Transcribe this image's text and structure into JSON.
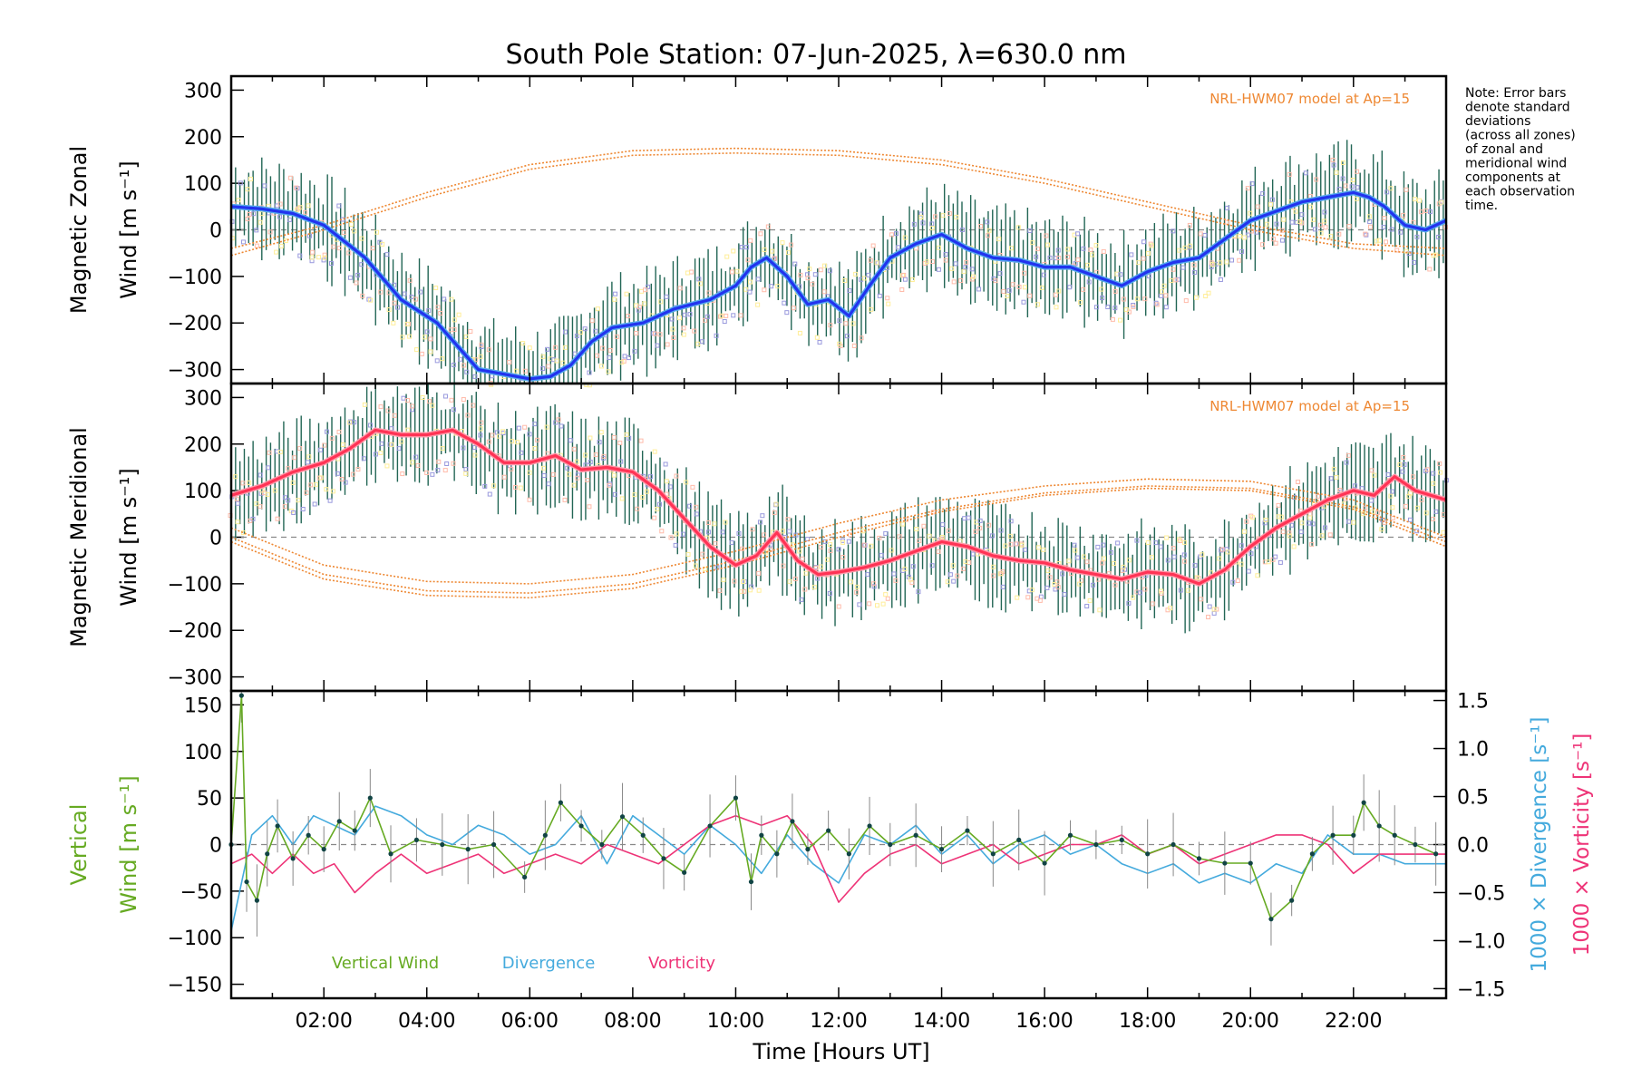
{
  "title": "South Pole Station: 07-Jun-2025, λ=630.0 nm",
  "note": {
    "lines": [
      "Note: Error bars",
      "denote standard",
      "deviations",
      "(across all zones)",
      "of zonal and",
      "meridional wind",
      "components at",
      "each observation",
      "time."
    ]
  },
  "colors": {
    "zonal": "#2233ee",
    "zonal_light": "#55aaee",
    "meridional": "#ff3355",
    "model": "#ee8833",
    "vertical": "#66aa22",
    "divergence": "#44aadd",
    "vorticity": "#ee3377",
    "errorbar": "#226655",
    "frame": "#000000"
  },
  "xaxis": {
    "label": "Time [Hours UT]",
    "range_hours": [
      0.2,
      23.8
    ],
    "ticks": [
      {
        "h": 2,
        "label": "02:00"
      },
      {
        "h": 4,
        "label": "04:00"
      },
      {
        "h": 6,
        "label": "06:00"
      },
      {
        "h": 8,
        "label": "08:00"
      },
      {
        "h": 10,
        "label": "10:00"
      },
      {
        "h": 12,
        "label": "12:00"
      },
      {
        "h": 14,
        "label": "14:00"
      },
      {
        "h": 16,
        "label": "16:00"
      },
      {
        "h": 18,
        "label": "18:00"
      },
      {
        "h": 20,
        "label": "20:00"
      },
      {
        "h": 22,
        "label": "22:00"
      }
    ]
  },
  "chart_data": [
    {
      "type": "line",
      "panel": "zonal",
      "ylabel_line1": "Magnetic Zonal",
      "ylabel_line2": "Wind [m s⁻¹]",
      "ylim": [
        -330,
        330
      ],
      "yticks": [
        -300,
        -200,
        -100,
        0,
        100,
        200,
        300
      ],
      "model_label": "NRL-HWM07 model at Ap=15",
      "series": [
        {
          "name": "zonal wind",
          "x": [
            0.2,
            0.8,
            1.4,
            2.0,
            2.8,
            3.5,
            4.2,
            5.0,
            5.5,
            6.0,
            6.4,
            6.8,
            7.2,
            7.6,
            8.2,
            8.8,
            9.5,
            10.0,
            10.3,
            10.6,
            11.0,
            11.4,
            11.8,
            12.2,
            12.6,
            13.0,
            13.5,
            14.0,
            14.5,
            15.0,
            15.5,
            16.0,
            16.5,
            17.0,
            17.5,
            18.0,
            18.5,
            19.0,
            19.5,
            20.0,
            20.5,
            21.0,
            21.5,
            22.0,
            22.3,
            22.6,
            23.0,
            23.4,
            23.8
          ],
          "y": [
            50,
            45,
            35,
            10,
            -60,
            -150,
            -200,
            -300,
            -310,
            -320,
            -315,
            -290,
            -240,
            -210,
            -200,
            -170,
            -150,
            -120,
            -80,
            -60,
            -100,
            -160,
            -150,
            -185,
            -120,
            -60,
            -30,
            -10,
            -40,
            -60,
            -65,
            -80,
            -80,
            -100,
            -120,
            -90,
            -70,
            -60,
            -20,
            20,
            40,
            60,
            70,
            80,
            70,
            50,
            10,
            0,
            20
          ]
        },
        {
          "name": "model upper",
          "x": [
            0.2,
            2,
            4,
            6,
            8,
            10,
            12,
            14,
            16,
            18,
            20,
            22,
            23.8
          ],
          "y": [
            -40,
            10,
            80,
            140,
            170,
            175,
            170,
            150,
            110,
            60,
            10,
            -30,
            -40
          ]
        },
        {
          "name": "model lower",
          "x": [
            0.2,
            2,
            4,
            6,
            8,
            10,
            12,
            14,
            16,
            18,
            20,
            22,
            23.8
          ],
          "y": [
            -55,
            0,
            70,
            130,
            160,
            165,
            160,
            140,
            100,
            50,
            0,
            -40,
            -55
          ]
        }
      ]
    },
    {
      "type": "line",
      "panel": "meridional",
      "ylabel_line1": "Magnetic Meridional",
      "ylabel_line2": "Wind [m s⁻¹]",
      "ylim": [
        -330,
        330
      ],
      "yticks": [
        -300,
        -200,
        -100,
        0,
        100,
        200,
        300
      ],
      "model_label": "NRL-HWM07 model at Ap=15",
      "series": [
        {
          "name": "meridional wind",
          "x": [
            0.2,
            0.8,
            1.4,
            2.0,
            2.5,
            3.0,
            3.5,
            4.0,
            4.5,
            5.0,
            5.5,
            6.0,
            6.5,
            7.0,
            7.5,
            8.0,
            8.5,
            9.0,
            9.5,
            10.0,
            10.4,
            10.8,
            11.2,
            11.6,
            12.0,
            12.5,
            13.0,
            13.5,
            14.0,
            14.5,
            15.0,
            15.5,
            16.0,
            16.5,
            17.0,
            17.5,
            18.0,
            18.5,
            19.0,
            19.5,
            20.0,
            20.5,
            21.0,
            21.5,
            22.0,
            22.4,
            22.8,
            23.2,
            23.8
          ],
          "y": [
            90,
            110,
            140,
            160,
            190,
            230,
            220,
            220,
            230,
            200,
            160,
            160,
            175,
            145,
            150,
            140,
            100,
            40,
            -20,
            -60,
            -40,
            10,
            -50,
            -80,
            -75,
            -65,
            -50,
            -30,
            -10,
            -20,
            -40,
            -50,
            -55,
            -70,
            -80,
            -90,
            -75,
            -80,
            -100,
            -70,
            -20,
            20,
            50,
            80,
            100,
            90,
            130,
            100,
            80
          ]
        },
        {
          "name": "model 1",
          "x": [
            0.2,
            2,
            4,
            6,
            8,
            10,
            12,
            14,
            16,
            18,
            20,
            22,
            23.8
          ],
          "y": [
            20,
            -60,
            -95,
            -100,
            -80,
            -30,
            30,
            80,
            110,
            125,
            120,
            80,
            0
          ]
        },
        {
          "name": "model 2",
          "x": [
            0.2,
            2,
            4,
            6,
            8,
            10,
            12,
            14,
            16,
            18,
            20,
            22,
            23.8
          ],
          "y": [
            0,
            -80,
            -115,
            -120,
            -100,
            -50,
            10,
            60,
            95,
            110,
            105,
            65,
            -10
          ]
        },
        {
          "name": "model 3",
          "x": [
            0.2,
            2,
            4,
            6,
            8,
            10,
            12,
            14,
            16,
            18,
            20,
            22,
            23.8
          ],
          "y": [
            -10,
            -90,
            -125,
            -130,
            -110,
            -60,
            0,
            55,
            90,
            105,
            100,
            60,
            -20
          ]
        }
      ]
    },
    {
      "type": "line",
      "panel": "vertical",
      "ylabel_left_line1": "Vertical",
      "ylabel_left_line2": "Wind [m s⁻¹]",
      "ylabel_right_div": "1000 × Divergence [s⁻¹]",
      "ylabel_right_vor": "1000 × Vorticity [s⁻¹]",
      "ylim_left": [
        -165,
        165
      ],
      "yticks_left": [
        -150,
        -100,
        -50,
        0,
        50,
        100,
        150
      ],
      "ylim_right": [
        -1.6,
        1.6
      ],
      "yticks_right": [
        {
          "v": -1.5,
          "label": "−1.5"
        },
        {
          "v": -1.0,
          "label": "−1.0"
        },
        {
          "v": -0.5,
          "label": "−0.5"
        },
        {
          "v": 0.0,
          "label": "0.0"
        },
        {
          "v": 0.5,
          "label": "0.5"
        },
        {
          "v": 1.0,
          "label": "1.0"
        },
        {
          "v": 1.5,
          "label": "1.5"
        }
      ],
      "legend": [
        "Vertical Wind",
        "Divergence",
        "Vorticity"
      ],
      "series": [
        {
          "name": "Vertical Wind",
          "x": [
            0.2,
            0.4,
            0.5,
            0.7,
            0.9,
            1.1,
            1.4,
            1.7,
            2.0,
            2.3,
            2.6,
            2.9,
            3.3,
            3.8,
            4.3,
            4.8,
            5.3,
            5.9,
            6.3,
            6.6,
            7.0,
            7.4,
            7.8,
            8.2,
            8.6,
            9.0,
            9.5,
            10.0,
            10.3,
            10.5,
            10.8,
            11.1,
            11.4,
            11.8,
            12.2,
            12.6,
            13.0,
            13.5,
            14.0,
            14.5,
            15.0,
            15.5,
            16.0,
            16.5,
            17.0,
            17.5,
            18.0,
            18.5,
            19.0,
            19.5,
            20.0,
            20.4,
            20.8,
            21.2,
            21.6,
            22.0,
            22.2,
            22.5,
            22.8,
            23.2,
            23.6
          ],
          "y": [
            0,
            160,
            -40,
            -60,
            -10,
            20,
            -15,
            10,
            -5,
            25,
            15,
            50,
            -10,
            5,
            0,
            -5,
            0,
            -35,
            10,
            45,
            20,
            0,
            30,
            10,
            -15,
            -30,
            20,
            50,
            -40,
            10,
            -10,
            25,
            -5,
            15,
            -10,
            20,
            0,
            10,
            -5,
            15,
            -10,
            5,
            -20,
            10,
            0,
            5,
            -10,
            0,
            -15,
            -20,
            -20,
            -80,
            -60,
            -10,
            10,
            10,
            45,
            20,
            10,
            0,
            -10
          ]
        },
        {
          "name": "Divergence",
          "x": [
            0.2,
            0.6,
            1.0,
            1.4,
            1.8,
            2.2,
            2.6,
            3.0,
            3.5,
            4.0,
            4.5,
            5.0,
            5.5,
            6.0,
            6.5,
            7.0,
            7.5,
            8.0,
            8.5,
            9.0,
            9.5,
            10.0,
            10.5,
            11.0,
            11.5,
            12.0,
            12.5,
            13.0,
            13.5,
            14.0,
            14.5,
            15.0,
            15.5,
            16.0,
            16.5,
            17.0,
            17.5,
            18.0,
            18.5,
            19.0,
            19.5,
            20.0,
            20.5,
            21.0,
            21.5,
            22.0,
            22.5,
            23.0,
            23.8
          ],
          "y": [
            -0.9,
            0.1,
            0.3,
            0.0,
            0.3,
            0.2,
            0.1,
            0.4,
            0.3,
            0.1,
            0.0,
            0.2,
            0.1,
            -0.1,
            0.0,
            0.3,
            -0.2,
            0.3,
            0.1,
            -0.1,
            0.2,
            0.0,
            -0.3,
            0.1,
            -0.2,
            -0.4,
            0.1,
            0.0,
            0.2,
            -0.1,
            0.1,
            -0.2,
            0.0,
            0.1,
            -0.1,
            0.0,
            -0.2,
            -0.3,
            -0.2,
            -0.4,
            -0.3,
            -0.4,
            -0.2,
            -0.3,
            0.1,
            -0.1,
            -0.1,
            -0.2,
            -0.2
          ]
        },
        {
          "name": "Vorticity",
          "x": [
            0.2,
            0.6,
            1.0,
            1.4,
            1.8,
            2.2,
            2.6,
            3.0,
            3.5,
            4.0,
            4.5,
            5.0,
            5.5,
            6.0,
            6.5,
            7.0,
            7.5,
            8.0,
            8.5,
            9.0,
            9.5,
            10.0,
            10.5,
            11.0,
            11.5,
            12.0,
            12.5,
            13.0,
            13.5,
            14.0,
            14.5,
            15.0,
            15.5,
            16.0,
            16.5,
            17.0,
            17.5,
            18.0,
            18.5,
            19.0,
            19.5,
            20.0,
            20.5,
            21.0,
            21.5,
            22.0,
            22.5,
            23.0,
            23.8
          ],
          "y": [
            -0.2,
            -0.1,
            -0.3,
            -0.1,
            -0.3,
            -0.2,
            -0.5,
            -0.3,
            -0.1,
            -0.3,
            -0.2,
            -0.1,
            -0.3,
            -0.2,
            -0.1,
            -0.2,
            0.0,
            -0.1,
            -0.2,
            0.0,
            0.2,
            0.3,
            0.2,
            0.3,
            0.0,
            -0.6,
            -0.3,
            -0.1,
            0.0,
            -0.2,
            -0.1,
            0.0,
            -0.2,
            -0.1,
            0.0,
            0.0,
            0.1,
            -0.1,
            0.0,
            -0.2,
            -0.1,
            0.0,
            0.1,
            0.1,
            0.0,
            -0.3,
            -0.1,
            -0.1,
            -0.1
          ]
        }
      ]
    }
  ]
}
